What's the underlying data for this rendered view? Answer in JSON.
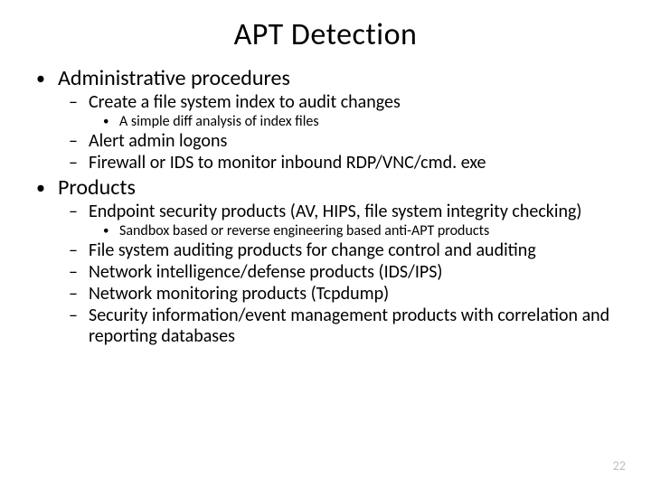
{
  "title": "APT Detection",
  "page_number": "22",
  "colors": {
    "background": "#ffffff",
    "text": "#000000",
    "page_num": "#bfbfbf"
  },
  "bullets": {
    "b1": "Administrative procedures",
    "b1_1": "Create a file system index to audit changes",
    "b1_1_1": "A simple diff analysis of index files",
    "b1_2": "Alert admin logons",
    "b1_3": "Firewall or IDS to monitor inbound RDP/VNC/cmd. exe",
    "b2": "Products",
    "b2_1": "Endpoint security products (AV, HIPS, file system integrity checking)",
    "b2_1_1": "Sandbox based or reverse engineering based anti-APT products",
    "b2_2": "File system auditing products for change control and auditing",
    "b2_3": "Network intelligence/defense products (IDS/IPS)",
    "b2_4": "Network monitoring products (Tcpdump)",
    "b2_5": "Security information/event management products with correlation and reporting databases"
  }
}
